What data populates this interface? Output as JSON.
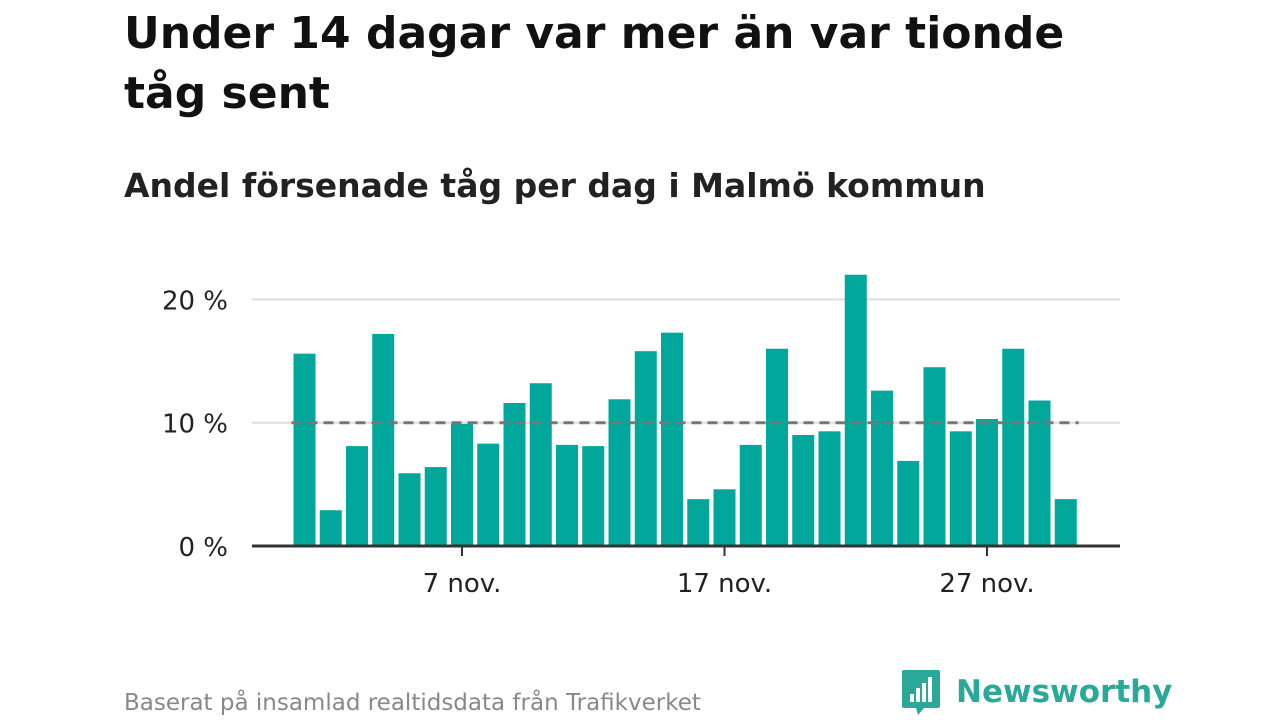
{
  "title": "Under 14 dagar var mer än var tionde tåg sent",
  "subtitle": "Andel försenade tåg per dag i Malmö kommun",
  "footer": {
    "source": "Baserat på insamlad realtidsdata från Trafikverket",
    "brand": "Newsworthy"
  },
  "colors": {
    "bar": "#00a79a",
    "reference_line": "#777777",
    "grid": "#dddddd",
    "axis": "#333333",
    "brand": "#2aa898"
  },
  "chart_data": {
    "type": "bar",
    "x_unit": "day of November",
    "x": [
      1,
      2,
      3,
      4,
      5,
      6,
      7,
      8,
      9,
      10,
      11,
      12,
      13,
      14,
      15,
      16,
      17,
      18,
      19,
      20,
      21,
      22,
      23,
      24,
      25,
      26,
      27,
      28,
      29,
      30
    ],
    "values": [
      15.6,
      2.9,
      8.1,
      17.2,
      5.9,
      6.4,
      9.9,
      8.3,
      11.6,
      13.2,
      8.2,
      8.1,
      11.9,
      15.8,
      17.3,
      3.8,
      4.6,
      8.2,
      16.0,
      9.0,
      9.3,
      22.0,
      12.6,
      6.9,
      14.5,
      9.3,
      10.3,
      16.0,
      11.8,
      3.8
    ],
    "reference_line": 10,
    "ylim": [
      0,
      22
    ],
    "y_ticks": [
      {
        "value": 0,
        "label": "0 %"
      },
      {
        "value": 10,
        "label": "10 %"
      },
      {
        "value": 20,
        "label": "20 %"
      }
    ],
    "x_ticks": [
      {
        "value": 7,
        "label": "7 nov."
      },
      {
        "value": 17,
        "label": "17 nov."
      },
      {
        "value": 27,
        "label": "27 nov."
      }
    ],
    "grid": true
  }
}
